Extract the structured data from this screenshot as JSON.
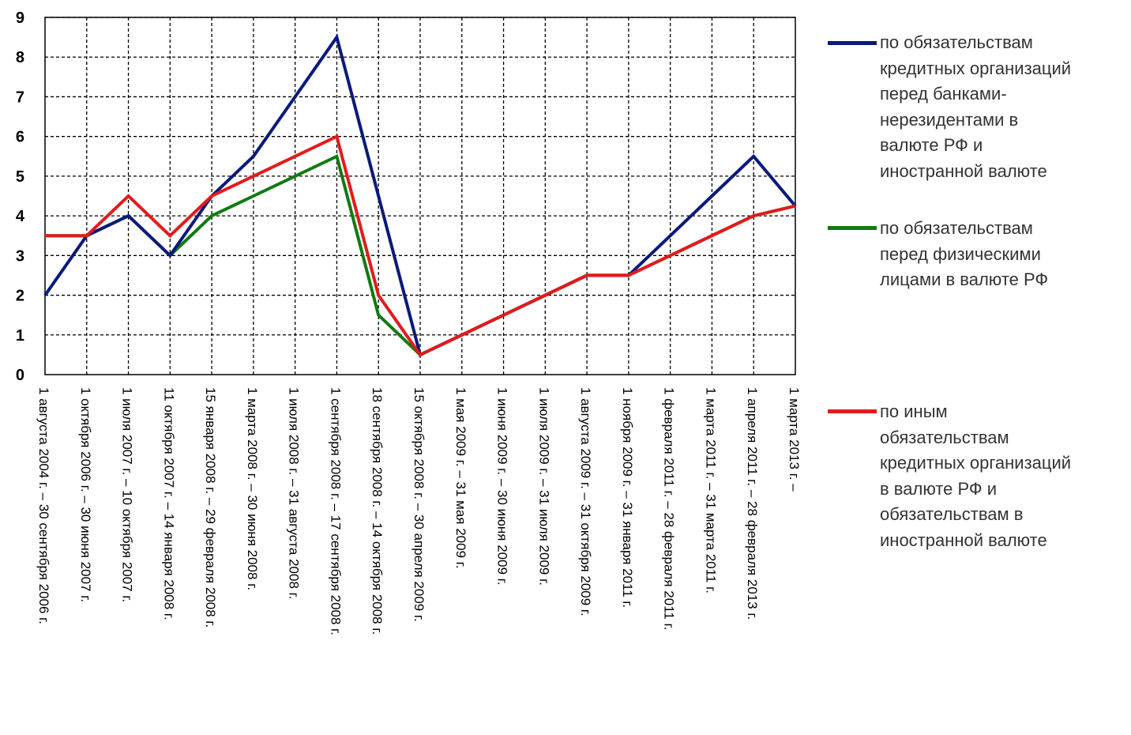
{
  "chart_data": {
    "type": "line",
    "title": "",
    "xlabel": "",
    "ylabel": "",
    "ylim": [
      0,
      9
    ],
    "yticks": [
      "0",
      "1",
      "2",
      "3",
      "4",
      "5",
      "6",
      "7",
      "8",
      "9"
    ],
    "grid": true,
    "legend_position": "right",
    "categories": [
      "1 августа 2004 г. – 30 сентября 2006 г.",
      "1 октября 2006 г. – 30 июня 2007 г.",
      "1 июля 2007 г. – 10 октября 2007 г.",
      "11 октября 2007 г. – 14 января 2008 г.",
      "15 января 2008 г. – 29 февраля 2008 г.",
      "1 марта 2008 г. – 30 июня 2008 г.",
      "1 июля 2008 г. – 31 августа 2008 г.",
      "1 сентября 2008 г. – 17 сентября 2008 г.",
      "18 сентября 2008 г. – 14 октября 2008 г.",
      "15 октября 2008 г. – 30 апреля 2009 г.",
      "1 мая 2009 г. – 31 мая 2009 г.",
      "1 июня 2009 г. – 30 июня 2009 г.",
      "1 июля 2009 г. – 31 июля 2009 г.",
      "1 августа 2009 г. – 31 октября 2009 г.",
      "1 ноября 2009 г. – 31 января 2011 г.",
      "1 февраля 2011 г. – 28 февраля 2011 г.",
      "1 марта 2011 г. – 31 марта 2011 г.",
      "1 апреля 2011 г. – 28 февраля 2013 г.",
      "1 марта 2013 г. –"
    ],
    "series": [
      {
        "name": "по обязательствам\nкредитных организаций\nперед банками-\nнерезидентами в\nвалюте РФ и\nиностранной валюте",
        "color": "#0a1a7a",
        "values": [
          2,
          3.5,
          4,
          3,
          4.5,
          5.5,
          7,
          8.5,
          4.5,
          0.5,
          1,
          1.5,
          2,
          2.5,
          2.5,
          3.5,
          4.5,
          5.5,
          4.25
        ]
      },
      {
        "name": " по обязательствам\nперед физическими\nлицами в валюте РФ",
        "color": "#117a11",
        "values": [
          3.5,
          3.5,
          4,
          3,
          4,
          4.5,
          5,
          5.5,
          1.5,
          0.5,
          1,
          1.5,
          2,
          2.5,
          2.5,
          3,
          3.5,
          4,
          4.25
        ]
      },
      {
        "name": "по иным\nобязательствам\nкредитных организаций\nв валюте РФ и\nобязательствам в\nиностранной валюте",
        "color": "#e41a1a",
        "values": [
          3.5,
          3.5,
          4.5,
          3.5,
          4.5,
          5,
          5.5,
          6,
          2,
          0.5,
          1,
          1.5,
          2,
          2.5,
          2.5,
          3,
          3.5,
          4,
          4.25
        ]
      }
    ]
  }
}
